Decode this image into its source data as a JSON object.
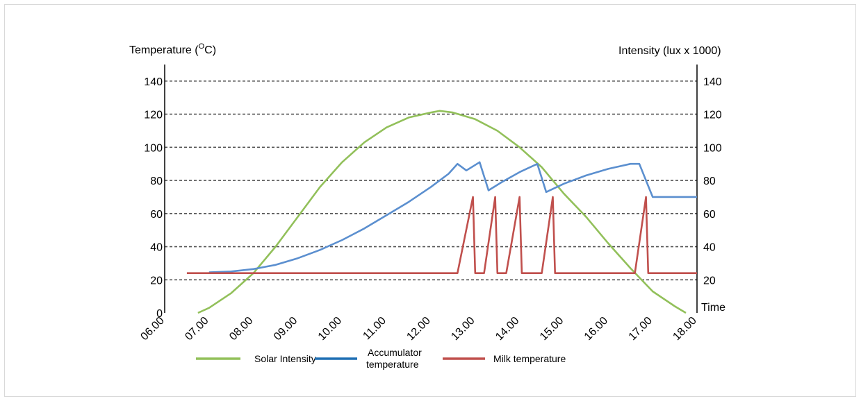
{
  "chart_data": {
    "type": "line",
    "left_axis_title": "Temperature (",
    "left_axis_unit_sup": "O",
    "left_axis_title_end": "C)",
    "right_axis_title": "Intensity (lux x 1000)",
    "x_axis_title": "Time",
    "x_categories": [
      "06.00",
      "07.00",
      "08.00",
      "09.00",
      "10.00",
      "11.00",
      "12.00",
      "13.00",
      "14.00",
      "15.00",
      "16.00",
      "17.00",
      "18.00"
    ],
    "xlim": [
      6,
      18
    ],
    "left_y_ticks": [
      "0",
      "20",
      "40",
      "60",
      "80",
      "100",
      "120",
      "140"
    ],
    "right_y_ticks": [
      "20",
      "40",
      "60",
      "80",
      "100",
      "120",
      "140"
    ],
    "ylim": [
      0,
      150
    ],
    "grid": "horizontal-dashed",
    "legend_placement": "bottom",
    "series": [
      {
        "name": "Solar Intensity",
        "color": "#92c05a",
        "points": [
          [
            6.75,
            0
          ],
          [
            7.0,
            3
          ],
          [
            7.5,
            12
          ],
          [
            8.0,
            24
          ],
          [
            8.5,
            40
          ],
          [
            9.0,
            58
          ],
          [
            9.5,
            76
          ],
          [
            10.0,
            91
          ],
          [
            10.5,
            103
          ],
          [
            11.0,
            112
          ],
          [
            11.5,
            118
          ],
          [
            12.0,
            121
          ],
          [
            12.2,
            122
          ],
          [
            12.5,
            121
          ],
          [
            13.0,
            117
          ],
          [
            13.5,
            110
          ],
          [
            14.0,
            100
          ],
          [
            14.5,
            88
          ],
          [
            15.0,
            72
          ],
          [
            15.5,
            58
          ],
          [
            16.0,
            42
          ],
          [
            16.5,
            27
          ],
          [
            17.0,
            13
          ],
          [
            17.5,
            4
          ],
          [
            17.75,
            0
          ]
        ]
      },
      {
        "name": "Accumulator temperature",
        "color": "#5b8fcf",
        "points": [
          [
            7.0,
            24.5
          ],
          [
            7.5,
            25
          ],
          [
            8.0,
            26.5
          ],
          [
            8.5,
            29
          ],
          [
            9.0,
            33
          ],
          [
            9.5,
            38
          ],
          [
            10.0,
            44
          ],
          [
            10.5,
            51
          ],
          [
            11.0,
            59
          ],
          [
            11.5,
            67
          ],
          [
            12.0,
            76
          ],
          [
            12.4,
            84
          ],
          [
            12.6,
            90
          ],
          [
            12.8,
            86
          ],
          [
            13.1,
            91
          ],
          [
            13.3,
            74
          ],
          [
            13.6,
            79
          ],
          [
            14.0,
            85
          ],
          [
            14.4,
            90
          ],
          [
            14.6,
            73
          ],
          [
            15.0,
            78
          ],
          [
            15.5,
            83
          ],
          [
            16.0,
            87
          ],
          [
            16.5,
            90
          ],
          [
            16.7,
            90
          ],
          [
            17.0,
            70
          ],
          [
            17.2,
            70
          ],
          [
            18.0,
            70
          ]
        ]
      },
      {
        "name": "Milk temperature",
        "color": "#c0504d",
        "points": [
          [
            6.5,
            24
          ],
          [
            12.6,
            24
          ],
          [
            12.95,
            70
          ],
          [
            13.0,
            24
          ],
          [
            13.2,
            24
          ],
          [
            13.45,
            70
          ],
          [
            13.5,
            24
          ],
          [
            13.7,
            24
          ],
          [
            14.0,
            70
          ],
          [
            14.05,
            24
          ],
          [
            14.5,
            24
          ],
          [
            14.75,
            70
          ],
          [
            14.8,
            24
          ],
          [
            16.6,
            24
          ],
          [
            16.85,
            70
          ],
          [
            16.9,
            24
          ],
          [
            18.0,
            24
          ]
        ]
      }
    ],
    "legend": [
      {
        "label": "Solar Intensity",
        "color": "#92c05a"
      },
      {
        "label_line1": "Accumulator",
        "label_line2": "temperature",
        "color": "#1f6fb4"
      },
      {
        "label": "Milk temperature",
        "color": "#c0504d"
      }
    ]
  }
}
